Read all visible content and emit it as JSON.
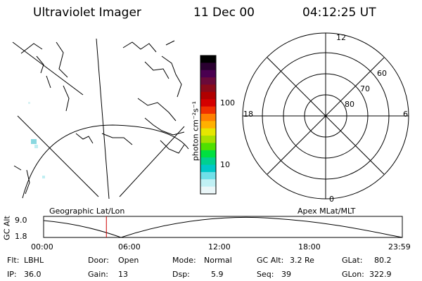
{
  "header": {
    "instrument": "Ultraviolet Imager",
    "date": "11 Dec 00",
    "time": "04:12:25 UT"
  },
  "colorbar": {
    "unit_label": "photon cm⁻²s⁻¹",
    "ticks": [
      "100",
      "10"
    ],
    "colors": [
      "#000000",
      "#2a0030",
      "#4a0050",
      "#6a0a3a",
      "#8a0a1a",
      "#b00000",
      "#d40000",
      "#f03000",
      "#ff8000",
      "#ffb000",
      "#e6e600",
      "#a8e000",
      "#50e000",
      "#00e040",
      "#00d090",
      "#00c8c8",
      "#70e0e8",
      "#c0f0f4",
      "#eaf6f8"
    ]
  },
  "polar_plot": {
    "mlt_labels": [
      "12",
      "18",
      "6",
      "0"
    ],
    "lat_labels": [
      "60",
      "70",
      "80"
    ]
  },
  "timeline": {
    "left_label": "Geographic Lat/Lon",
    "right_label": "Apex MLat/MLT",
    "axis_title": "GC Alt",
    "y_ticks": [
      "9.0",
      "1.8"
    ],
    "x_ticks": [
      "00:00",
      "06:00",
      "12:00",
      "18:00",
      "23:59"
    ],
    "current_time_fraction": 0.175,
    "marker_color": "#cc0000"
  },
  "status": {
    "flt": {
      "label": "Flt:",
      "value": "LBHL"
    },
    "ip": {
      "label": "IP:",
      "value": "36.0"
    },
    "door": {
      "label": "Door:",
      "value": "Open"
    },
    "gain": {
      "label": "Gain:",
      "value": "13"
    },
    "mode": {
      "label": "Mode:",
      "value": "Normal"
    },
    "dsp": {
      "label": "Dsp:",
      "value": "5.9"
    },
    "gcalt": {
      "label": "GC Alt:",
      "value": "3.2 Re"
    },
    "seq": {
      "label": "Seq:",
      "value": "39"
    },
    "glat": {
      "label": "GLat:",
      "value": "80.2"
    },
    "glon": {
      "label": "GLon:",
      "value": "322.9"
    }
  }
}
